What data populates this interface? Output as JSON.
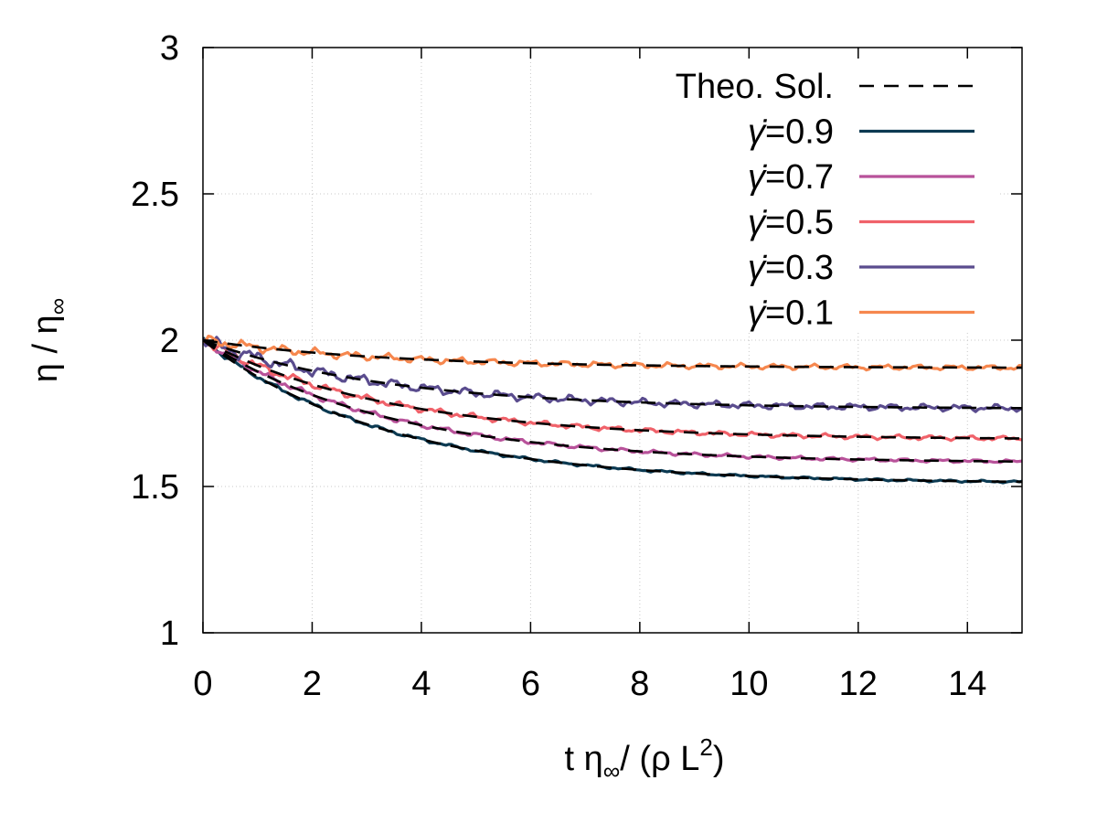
{
  "chart_data": {
    "type": "line",
    "title": "",
    "xlabel": "t η∞/ (ρ L2)",
    "xlabel_parts": {
      "main": "t η",
      "sub": "∞",
      "mid": "/ (ρ L",
      "sup": "2",
      "end": ")"
    },
    "ylabel": "η / η∞",
    "ylabel_parts": {
      "main": "η / η",
      "sub": "∞"
    },
    "xlim": [
      0,
      15
    ],
    "ylim": [
      1,
      3
    ],
    "xticks": [
      0,
      2,
      4,
      6,
      8,
      10,
      12,
      14
    ],
    "xtick_labels": [
      "0",
      "2",
      "4",
      "6",
      "8",
      "10",
      "12",
      "14"
    ],
    "yticks": [
      1,
      1.5,
      2,
      2.5,
      3
    ],
    "ytick_labels": [
      "1",
      "1.5",
      "2",
      "2.5",
      "3"
    ],
    "grid": true,
    "legend_position": "top-right",
    "theory": {
      "name": "Theo. Sol.",
      "color": "#000000",
      "model": "eta = eta_inf + (2 - eta_inf) * exp(-t / tau)"
    },
    "series": [
      {
        "name": "γ̇=0.9",
        "label_prefix": "γ̇",
        "label_value": "=0.9",
        "gammadot": 0.9,
        "color": "#0c3a52",
        "eta_inf": 1.51,
        "tau": 3.4,
        "noise": 0.004,
        "width": 3.2
      },
      {
        "name": "γ̇=0.7",
        "label_prefix": "γ̇",
        "label_value": "=0.7",
        "gammadot": 0.7,
        "color": "#b8529a",
        "eta_inf": 1.58,
        "tau": 3.4,
        "noise": 0.006,
        "width": 3.2
      },
      {
        "name": "γ̇=0.5",
        "label_prefix": "γ̇",
        "label_value": "=0.5",
        "gammadot": 0.5,
        "color": "#f0626a",
        "eta_inf": 1.66,
        "tau": 3.4,
        "noise": 0.008,
        "width": 3.2
      },
      {
        "name": "γ̇=0.3",
        "label_prefix": "γ̇",
        "label_value": "=0.3",
        "gammadot": 0.3,
        "color": "#5a4c8e",
        "eta_inf": 1.765,
        "tau": 3.4,
        "noise": 0.012,
        "width": 3.2
      },
      {
        "name": "γ̇=0.1",
        "label_prefix": "γ̇",
        "label_value": "=0.1",
        "gammadot": 0.1,
        "color": "#f6874e",
        "eta_inf": 1.905,
        "tau": 3.4,
        "noise": 0.009,
        "width": 3.2
      }
    ]
  }
}
